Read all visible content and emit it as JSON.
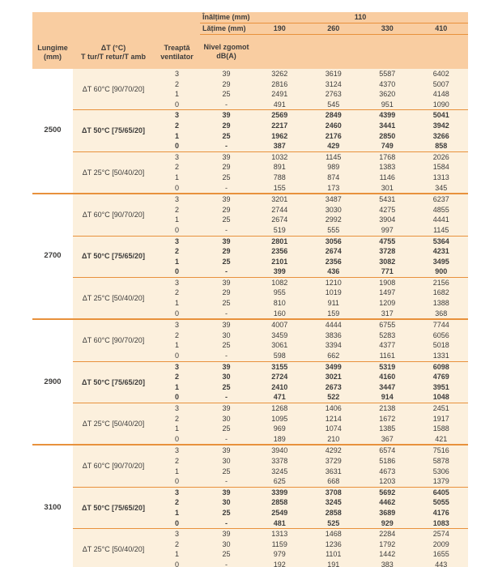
{
  "table": {
    "colors": {
      "header_bg": "#f9cda1",
      "body_bg": "#fcf0dd",
      "line": "#e8913c",
      "text": "#3d3c3b"
    },
    "header": {
      "inaltime_label": "Înălțime (mm)",
      "inaltime_value": "110",
      "latime_label": "Lățime (mm)",
      "width_values": [
        "190",
        "260",
        "330",
        "410"
      ],
      "lungime_label": [
        "Lungime",
        "(mm)"
      ],
      "delta_t_label": [
        "ΔT (°C)",
        "T tur/T retur/T amb"
      ],
      "treapta_label": [
        "Treaptă",
        "ventilator"
      ],
      "nivel_label": [
        "Nivel zgomot",
        "dB(A)"
      ]
    },
    "groups": [
      {
        "length": "2500",
        "blocks": [
          {
            "label": "ΔT 60°C [90/70/20]",
            "emphasis": false,
            "rows": [
              {
                "speed": "3",
                "noise": "39",
                "values": [
                  "3262",
                  "3619",
                  "5587",
                  "6402"
                ]
              },
              {
                "speed": "2",
                "noise": "29",
                "values": [
                  "2816",
                  "3124",
                  "4370",
                  "5007"
                ]
              },
              {
                "speed": "1",
                "noise": "25",
                "values": [
                  "2491",
                  "2763",
                  "3620",
                  "4148"
                ]
              },
              {
                "speed": "0",
                "noise": "-",
                "values": [
                  "491",
                  "545",
                  "951",
                  "1090"
                ]
              }
            ]
          },
          {
            "label": "ΔT 50°C [75/65/20]",
            "emphasis": true,
            "rows": [
              {
                "speed": "3",
                "noise": "39",
                "values": [
                  "2569",
                  "2849",
                  "4399",
                  "5041"
                ]
              },
              {
                "speed": "2",
                "noise": "29",
                "values": [
                  "2217",
                  "2460",
                  "3441",
                  "3942"
                ]
              },
              {
                "speed": "1",
                "noise": "25",
                "values": [
                  "1962",
                  "2176",
                  "2850",
                  "3266"
                ]
              },
              {
                "speed": "0",
                "noise": "-",
                "values": [
                  "387",
                  "429",
                  "749",
                  "858"
                ]
              }
            ]
          },
          {
            "label": "ΔT 25°C [50/40/20]",
            "emphasis": false,
            "rows": [
              {
                "speed": "3",
                "noise": "39",
                "values": [
                  "1032",
                  "1145",
                  "1768",
                  "2026"
                ]
              },
              {
                "speed": "2",
                "noise": "29",
                "values": [
                  "891",
                  "989",
                  "1383",
                  "1584"
                ]
              },
              {
                "speed": "1",
                "noise": "25",
                "values": [
                  "788",
                  "874",
                  "1146",
                  "1313"
                ]
              },
              {
                "speed": "0",
                "noise": "-",
                "values": [
                  "155",
                  "173",
                  "301",
                  "345"
                ]
              }
            ]
          }
        ]
      },
      {
        "length": "2700",
        "blocks": [
          {
            "label": "ΔT 60°C [90/70/20]",
            "emphasis": false,
            "rows": [
              {
                "speed": "3",
                "noise": "39",
                "values": [
                  "3201",
                  "3487",
                  "5431",
                  "6237"
                ]
              },
              {
                "speed": "2",
                "noise": "29",
                "values": [
                  "2744",
                  "3030",
                  "4275",
                  "4855"
                ]
              },
              {
                "speed": "1",
                "noise": "25",
                "values": [
                  "2674",
                  "2992",
                  "3904",
                  "4441"
                ]
              },
              {
                "speed": "0",
                "noise": "-",
                "values": [
                  "519",
                  "555",
                  "997",
                  "1145"
                ]
              }
            ]
          },
          {
            "label": "ΔT 50°C [75/65/20]",
            "emphasis": true,
            "rows": [
              {
                "speed": "3",
                "noise": "39",
                "values": [
                  "2801",
                  "3056",
                  "4755",
                  "5364"
                ]
              },
              {
                "speed": "2",
                "noise": "29",
                "values": [
                  "2356",
                  "2674",
                  "3728",
                  "4231"
                ]
              },
              {
                "speed": "1",
                "noise": "25",
                "values": [
                  "2101",
                  "2356",
                  "3082",
                  "3495"
                ]
              },
              {
                "speed": "0",
                "noise": "-",
                "values": [
                  "399",
                  "436",
                  "771",
                  "900"
                ]
              }
            ]
          },
          {
            "label": "ΔT 25°C [50/40/20]",
            "emphasis": false,
            "rows": [
              {
                "speed": "3",
                "noise": "39",
                "values": [
                  "1082",
                  "1210",
                  "1908",
                  "2156"
                ]
              },
              {
                "speed": "2",
                "noise": "29",
                "values": [
                  "955",
                  "1019",
                  "1497",
                  "1682"
                ]
              },
              {
                "speed": "1",
                "noise": "25",
                "values": [
                  "810",
                  "911",
                  "1209",
                  "1388"
                ]
              },
              {
                "speed": "0",
                "noise": "-",
                "values": [
                  "160",
                  "159",
                  "317",
                  "368"
                ]
              }
            ]
          }
        ]
      },
      {
        "length": "2900",
        "blocks": [
          {
            "label": "ΔT 60°C [90/70/20]",
            "emphasis": false,
            "rows": [
              {
                "speed": "3",
                "noise": "39",
                "values": [
                  "4007",
                  "4444",
                  "6755",
                  "7744"
                ]
              },
              {
                "speed": "2",
                "noise": "30",
                "values": [
                  "3459",
                  "3836",
                  "5283",
                  "6056"
                ]
              },
              {
                "speed": "1",
                "noise": "25",
                "values": [
                  "3061",
                  "3394",
                  "4377",
                  "5018"
                ]
              },
              {
                "speed": "0",
                "noise": "-",
                "values": [
                  "598",
                  "662",
                  "1161",
                  "1331"
                ]
              }
            ]
          },
          {
            "label": "ΔT 50°C [75/65/20]",
            "emphasis": true,
            "rows": [
              {
                "speed": "3",
                "noise": "39",
                "values": [
                  "3155",
                  "3499",
                  "5319",
                  "6098"
                ]
              },
              {
                "speed": "2",
                "noise": "30",
                "values": [
                  "2724",
                  "3021",
                  "4160",
                  "4769"
                ]
              },
              {
                "speed": "1",
                "noise": "25",
                "values": [
                  "2410",
                  "2673",
                  "3447",
                  "3951"
                ]
              },
              {
                "speed": "0",
                "noise": "-",
                "values": [
                  "471",
                  "522",
                  "914",
                  "1048"
                ]
              }
            ]
          },
          {
            "label": "ΔT 25°C [50/40/20]",
            "emphasis": false,
            "rows": [
              {
                "speed": "3",
                "noise": "39",
                "values": [
                  "1268",
                  "1406",
                  "2138",
                  "2451"
                ]
              },
              {
                "speed": "2",
                "noise": "30",
                "values": [
                  "1095",
                  "1214",
                  "1672",
                  "1917"
                ]
              },
              {
                "speed": "1",
                "noise": "25",
                "values": [
                  "969",
                  "1074",
                  "1385",
                  "1588"
                ]
              },
              {
                "speed": "0",
                "noise": "-",
                "values": [
                  "189",
                  "210",
                  "367",
                  "421"
                ]
              }
            ]
          }
        ]
      },
      {
        "length": "3100",
        "blocks": [
          {
            "label": "ΔT 60°C [90/70/20]",
            "emphasis": false,
            "rows": [
              {
                "speed": "3",
                "noise": "39",
                "values": [
                  "3940",
                  "4292",
                  "6574",
                  "7516"
                ]
              },
              {
                "speed": "2",
                "noise": "30",
                "values": [
                  "3378",
                  "3729",
                  "5186",
                  "5878"
                ]
              },
              {
                "speed": "1",
                "noise": "25",
                "values": [
                  "3245",
                  "3631",
                  "4673",
                  "5306"
                ]
              },
              {
                "speed": "0",
                "noise": "-",
                "values": [
                  "625",
                  "668",
                  "1203",
                  "1379"
                ]
              }
            ]
          },
          {
            "label": "ΔT 50°C [75/65/20]",
            "emphasis": true,
            "rows": [
              {
                "speed": "3",
                "noise": "39",
                "values": [
                  "3399",
                  "3708",
                  "5692",
                  "6405"
                ]
              },
              {
                "speed": "2",
                "noise": "30",
                "values": [
                  "2858",
                  "3245",
                  "4462",
                  "5055"
                ]
              },
              {
                "speed": "1",
                "noise": "25",
                "values": [
                  "2549",
                  "2858",
                  "3689",
                  "4176"
                ]
              },
              {
                "speed": "0",
                "noise": "-",
                "values": [
                  "481",
                  "525",
                  "929",
                  "1083"
                ]
              }
            ]
          },
          {
            "label": "ΔT 25°C [50/40/20]",
            "emphasis": false,
            "rows": [
              {
                "speed": "3",
                "noise": "39",
                "values": [
                  "1313",
                  "1468",
                  "2284",
                  "2574"
                ]
              },
              {
                "speed": "2",
                "noise": "30",
                "values": [
                  "1159",
                  "1236",
                  "1792",
                  "2009"
                ]
              },
              {
                "speed": "1",
                "noise": "25",
                "values": [
                  "979",
                  "1101",
                  "1442",
                  "1655"
                ]
              },
              {
                "speed": "0",
                "noise": "-",
                "values": [
                  "192",
                  "191",
                  "383",
                  "443"
                ]
              }
            ]
          }
        ]
      }
    ]
  }
}
